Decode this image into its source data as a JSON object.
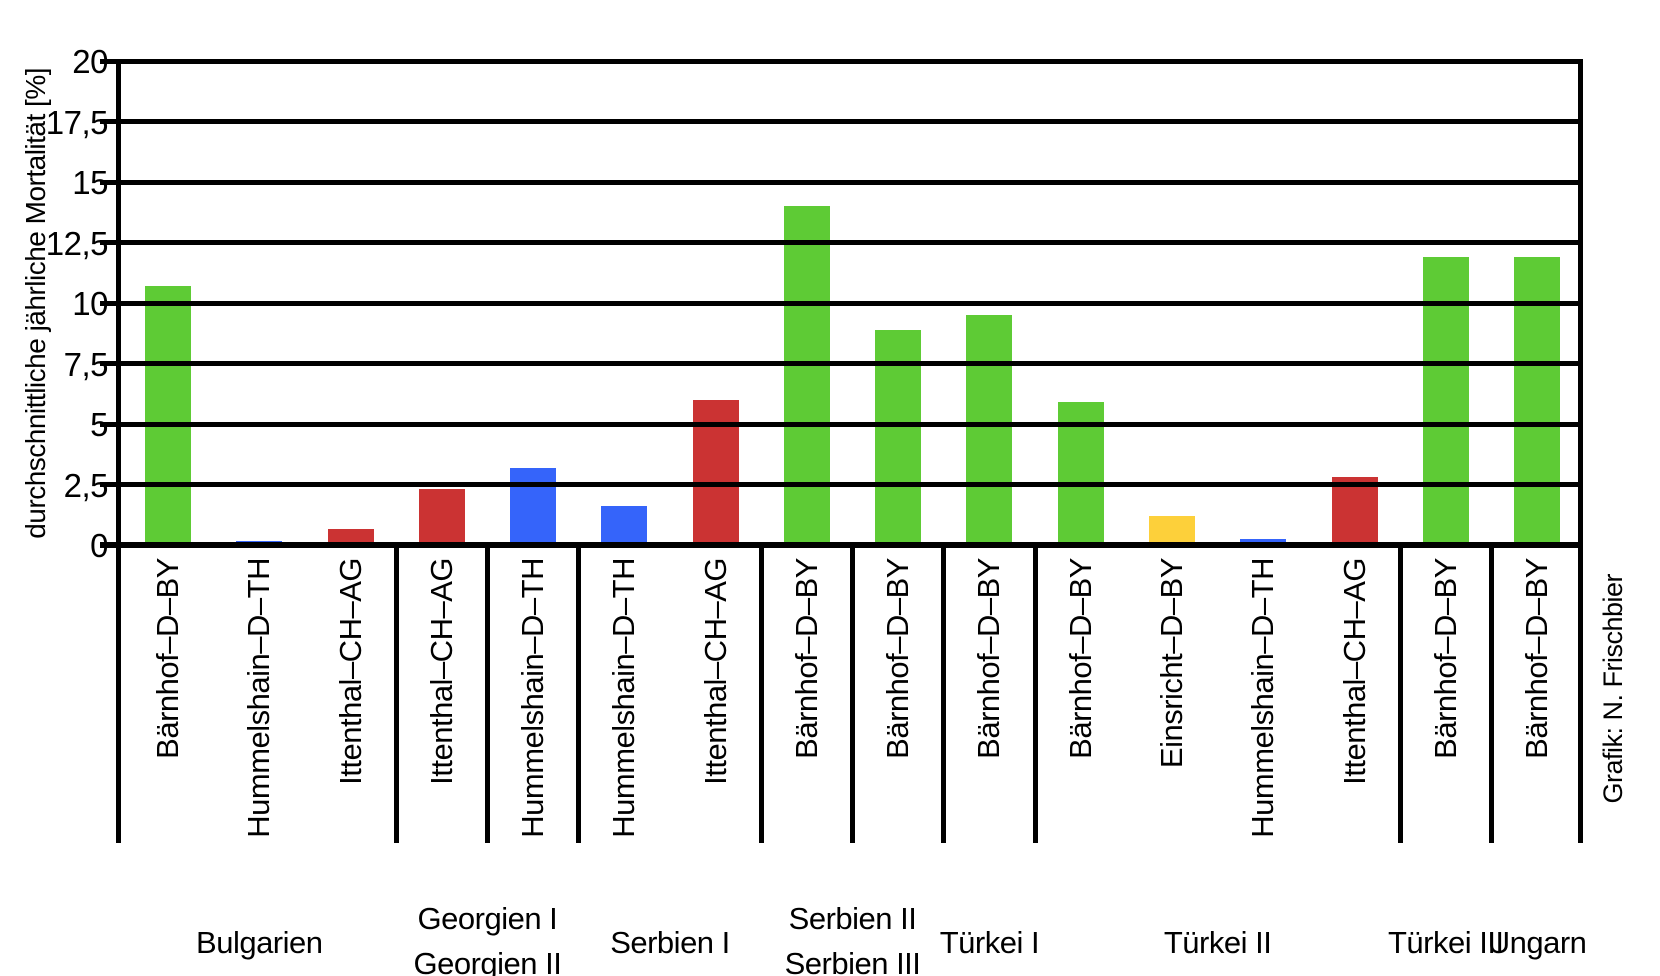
{
  "page": {
    "background": "#ffffff"
  },
  "credit": "Grafik: N. Frischbier",
  "chart_data": {
    "type": "bar",
    "title": "",
    "xlabel": "",
    "ylabel": "durchschnittliche jährliche Mortalität [%]",
    "ylim": [
      0,
      20
    ],
    "ytick_step": 2.5,
    "ytick_labels": [
      "0",
      "2,5",
      "5",
      "7,5",
      "10",
      "12,5",
      "15",
      "17,5",
      "20"
    ],
    "grid": "horizontal-black",
    "legend": "none",
    "colors": {
      "green": "#5ecb35",
      "blue": "#3564fa",
      "red": "#cb3333",
      "yellow": "#fdd03a",
      "axis": "#000000"
    },
    "bars": [
      {
        "group": "Bulgarien",
        "site": "Bärnhof–D–BY",
        "value": 10.7,
        "color": "green"
      },
      {
        "group": "Bulgarien",
        "site": "Hummelshain–D–TH",
        "value": 0.15,
        "color": "blue"
      },
      {
        "group": "Bulgarien",
        "site": "Ittenthal–CH–AG",
        "value": 0.65,
        "color": "red"
      },
      {
        "group": "Georgien I",
        "site": "Ittenthal–CH–AG",
        "value": 2.3,
        "color": "red"
      },
      {
        "group": "Georgien II",
        "site": "Hummelshain–D–TH",
        "value": 3.2,
        "color": "blue"
      },
      {
        "group": "Serbien I",
        "site": "Hummelshain–D–TH",
        "value": 1.6,
        "color": "blue"
      },
      {
        "group": "Serbien I",
        "site": "Ittenthal–CH–AG",
        "value": 6.0,
        "color": "red"
      },
      {
        "group": "Serbien II",
        "site": "Bärnhof–D–BY",
        "value": 14.0,
        "color": "green"
      },
      {
        "group": "Serbien III",
        "site": "Bärnhof–D–BY",
        "value": 8.9,
        "color": "green"
      },
      {
        "group": "Türkei I",
        "site": "Bärnhof–D–BY",
        "value": 9.5,
        "color": "green"
      },
      {
        "group": "Türkei II",
        "site": "Bärnhof–D–BY",
        "value": 5.9,
        "color": "green"
      },
      {
        "group": "Türkei II",
        "site": "Einsricht–D–BY",
        "value": 1.2,
        "color": "yellow"
      },
      {
        "group": "Türkei II",
        "site": "Hummelshain–D–TH",
        "value": 0.25,
        "color": "blue"
      },
      {
        "group": "Türkei II",
        "site": "Ittenthal–CH–AG",
        "value": 2.8,
        "color": "red"
      },
      {
        "group": "Türkei III",
        "site": "Bärnhof–D–BY",
        "value": 11.9,
        "color": "green"
      },
      {
        "group": "Ungarn",
        "site": "Bärnhof–D–BY",
        "value": 11.9,
        "color": "green"
      }
    ],
    "group_labels": [
      {
        "lines": [
          "Bulgarien"
        ],
        "from": 0,
        "to": 2
      },
      {
        "lines": [
          "Georgien I",
          "Georgien II"
        ],
        "from": 3,
        "to": 4
      },
      {
        "lines": [
          "Serbien I"
        ],
        "from": 5,
        "to": 6
      },
      {
        "lines": [
          "Serbien II",
          "Serbien III"
        ],
        "from": 7,
        "to": 8
      },
      {
        "lines": [
          "Türkei I"
        ],
        "from": 9,
        "to": 9
      },
      {
        "lines": [
          "Türkei II"
        ],
        "from": 10,
        "to": 13
      },
      {
        "lines": [
          "Türkei III"
        ],
        "from": 14,
        "to": 14
      },
      {
        "lines": [
          "Ungarn"
        ],
        "from": 15,
        "to": 15
      }
    ],
    "separators_after": [
      2,
      3,
      4,
      6,
      7,
      8,
      9,
      13,
      14
    ]
  }
}
